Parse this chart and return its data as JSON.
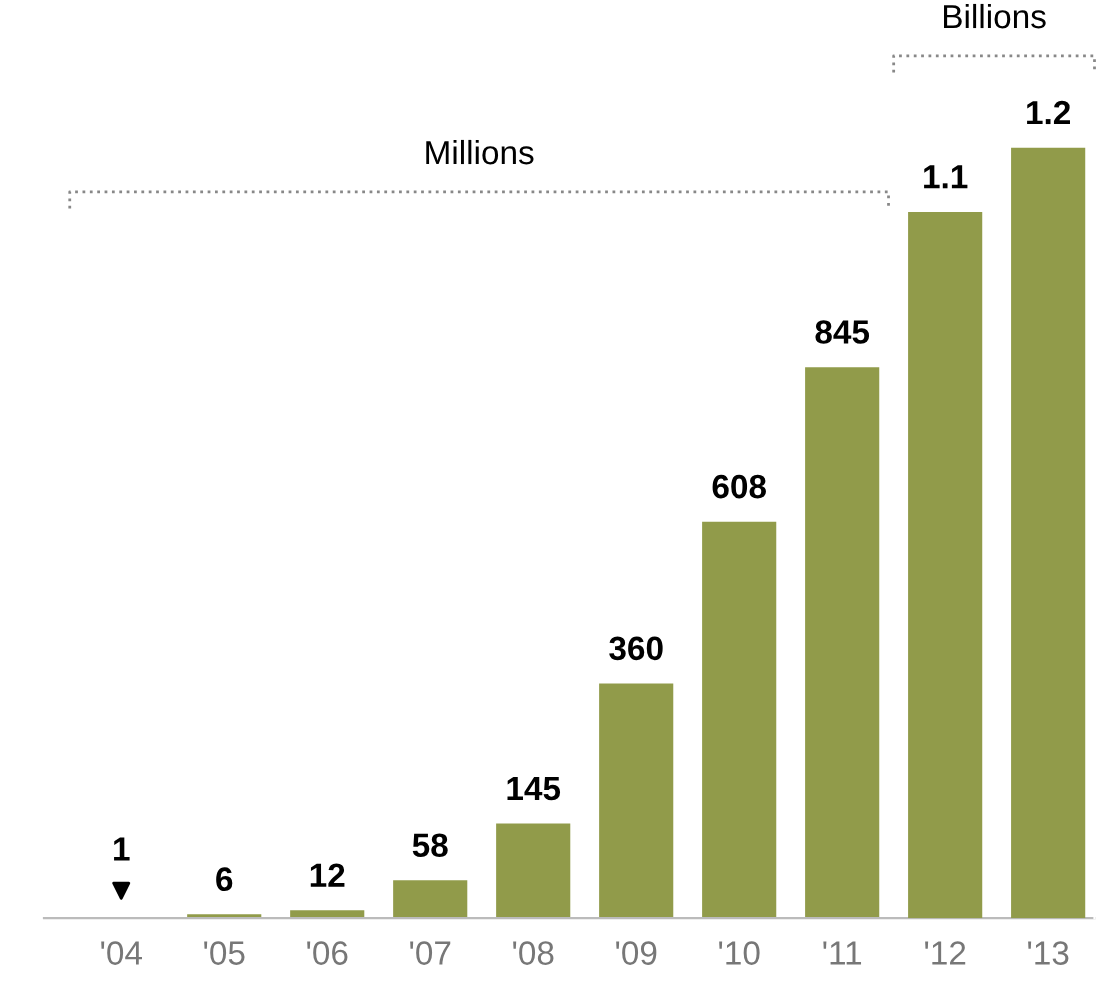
{
  "chart_data": {
    "type": "bar",
    "categories": [
      "'04",
      "'05",
      "'06",
      "'07",
      "'08",
      "'09",
      "'10",
      "'11",
      "'12",
      "'13"
    ],
    "series": [
      {
        "color": "#919b4a",
        "values": [
          1,
          6,
          12,
          58,
          145,
          360,
          608,
          845,
          null,
          null
        ],
        "value_labels": [
          "1",
          "6",
          "12",
          "58",
          "145",
          "360",
          "608",
          "845",
          null,
          null
        ]
      },
      {
        "color": "#919b4a",
        "axis": "y2",
        "values": [
          null,
          null,
          null,
          null,
          null,
          null,
          null,
          null,
          1.1,
          1.2
        ],
        "value_labels": [
          null,
          null,
          null,
          null,
          null,
          null,
          null,
          null,
          "1.1",
          "1.2"
        ]
      }
    ],
    "annotations": [
      "Millions",
      "Billions"
    ],
    "ylim": [
      0,
      1280
    ],
    "y2lim": [
      0,
      1.3
    ],
    "tick_labels": "x",
    "grid": false
  }
}
